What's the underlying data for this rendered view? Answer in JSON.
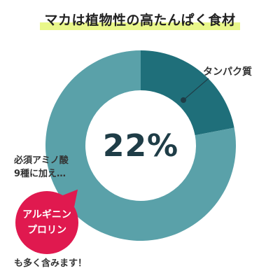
{
  "title": "マカは植物性の高たんぱく食材",
  "chart_data": {
    "type": "pie",
    "donut": true,
    "slices": [
      {
        "label": "タンパク質",
        "value": 22,
        "color": "#1f6f7a"
      },
      {
        "label": "",
        "value": 78,
        "color": "#5aa1a9"
      }
    ],
    "center_label": "22%"
  },
  "annotation": {
    "line1": "必須アミノ酸",
    "line2": "9種に加え…",
    "badge_line1": "アルギニン",
    "badge_line2": "プロリン",
    "footer": "も多く含みます！"
  }
}
